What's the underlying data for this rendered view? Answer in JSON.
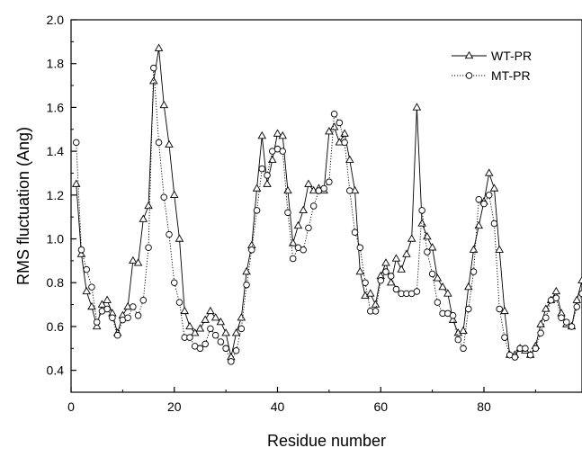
{
  "chart_data": {
    "type": "line",
    "title": "",
    "xlabel": "Residue number",
    "ylabel": "RMS fluctuation (Ang)",
    "xlim": [
      0,
      99
    ],
    "ylim": [
      0.3,
      2.0
    ],
    "xticks": [
      0,
      20,
      40,
      60,
      80
    ],
    "xtick_labels": [
      "0",
      "20",
      "40",
      "60",
      "80"
    ],
    "yticks": [
      0.4,
      0.6,
      0.8,
      1.0,
      1.2,
      1.4,
      1.6,
      1.8,
      2.0
    ],
    "ytick_labels": [
      "0.4",
      "0.6",
      "0.8",
      "1.0",
      "1.2",
      "1.4",
      "1.6",
      "1.8",
      "2.0"
    ],
    "grid": false,
    "legend_position": "top-right",
    "x": [
      1,
      2,
      3,
      4,
      5,
      6,
      7,
      8,
      9,
      10,
      11,
      12,
      13,
      14,
      15,
      16,
      17,
      18,
      19,
      20,
      21,
      22,
      23,
      24,
      25,
      26,
      27,
      28,
      29,
      30,
      31,
      32,
      33,
      34,
      35,
      36,
      37,
      38,
      39,
      40,
      41,
      42,
      43,
      44,
      45,
      46,
      47,
      48,
      49,
      50,
      51,
      52,
      53,
      54,
      55,
      56,
      57,
      58,
      59,
      60,
      61,
      62,
      63,
      64,
      65,
      66,
      67,
      68,
      69,
      70,
      71,
      72,
      73,
      74,
      75,
      76,
      77,
      78,
      79,
      80,
      81,
      82,
      83,
      84,
      85,
      86,
      87,
      88,
      89,
      90,
      91,
      92,
      93,
      94,
      95,
      96,
      97,
      98,
      99
    ],
    "series": [
      {
        "name": "WT-PR",
        "marker": "triangle",
        "line_style": "solid",
        "color": "#000000",
        "values": [
          1.25,
          0.93,
          0.76,
          0.69,
          0.6,
          0.7,
          0.72,
          0.66,
          0.57,
          0.65,
          0.69,
          0.9,
          0.89,
          1.09,
          1.15,
          1.72,
          1.87,
          1.61,
          1.43,
          1.2,
          1.0,
          0.67,
          0.6,
          0.57,
          0.59,
          0.63,
          0.67,
          0.64,
          0.62,
          0.57,
          0.46,
          0.57,
          0.64,
          0.85,
          0.97,
          1.23,
          1.47,
          1.25,
          1.36,
          1.48,
          1.47,
          1.22,
          0.98,
          1.06,
          1.13,
          1.25,
          1.22,
          1.23,
          1.22,
          1.49,
          1.51,
          1.44,
          1.48,
          1.36,
          1.22,
          0.85,
          0.74,
          0.75,
          0.7,
          0.83,
          0.89,
          0.8,
          0.91,
          0.86,
          0.93,
          1.0,
          1.6,
          1.07,
          1.01,
          0.96,
          0.82,
          0.78,
          0.75,
          0.63,
          0.57,
          0.58,
          0.78,
          0.95,
          1.06,
          1.17,
          1.3,
          1.23,
          0.95,
          0.67,
          0.47,
          0.47,
          0.5,
          0.49,
          0.47,
          0.51,
          0.61,
          0.68,
          0.72,
          0.76,
          0.66,
          0.61,
          0.6,
          0.72,
          0.81
        ]
      },
      {
        "name": "MT-PR",
        "marker": "circle",
        "line_style": "dotted",
        "color": "#000000",
        "values": [
          1.44,
          0.95,
          0.86,
          0.78,
          0.62,
          0.67,
          0.68,
          0.64,
          0.56,
          0.63,
          0.64,
          0.69,
          0.65,
          0.72,
          0.96,
          1.78,
          1.44,
          1.19,
          1.02,
          0.8,
          0.71,
          0.55,
          0.55,
          0.51,
          0.5,
          0.52,
          0.59,
          0.56,
          0.53,
          0.5,
          0.44,
          0.49,
          0.59,
          0.79,
          0.95,
          1.13,
          1.32,
          1.29,
          1.4,
          1.41,
          1.4,
          1.12,
          0.91,
          0.96,
          0.95,
          1.05,
          1.15,
          1.22,
          1.23,
          1.26,
          1.57,
          1.53,
          1.44,
          1.22,
          1.03,
          0.96,
          0.8,
          0.67,
          0.67,
          0.81,
          0.85,
          0.83,
          0.77,
          0.75,
          0.75,
          0.75,
          0.76,
          1.13,
          0.94,
          0.84,
          0.71,
          0.66,
          0.66,
          0.65,
          0.54,
          0.5,
          0.68,
          0.85,
          1.18,
          1.16,
          1.2,
          1.07,
          0.68,
          0.55,
          0.47,
          0.46,
          0.5,
          0.5,
          0.47,
          0.5,
          0.57,
          0.64,
          0.72,
          0.73,
          0.64,
          0.62,
          0.6,
          0.69,
          0.75
        ]
      }
    ]
  }
}
